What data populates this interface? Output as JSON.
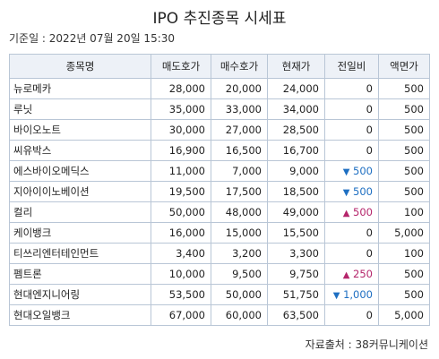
{
  "title": "IPO 추진종목 시세표",
  "base_date": "기준일 : 2022년 07월 20일 15:30",
  "columns": [
    "종목명",
    "매도호가",
    "매수호가",
    "현재가",
    "전일비",
    "액면가"
  ],
  "rows": [
    {
      "name": "뉴로메카",
      "ask": "28,000",
      "bid": "20,000",
      "price": "24,000",
      "dir": "",
      "change": "0",
      "par": "500"
    },
    {
      "name": "루닛",
      "ask": "35,000",
      "bid": "33,000",
      "price": "34,000",
      "dir": "",
      "change": "0",
      "par": "500"
    },
    {
      "name": "바이오노트",
      "ask": "30,000",
      "bid": "27,000",
      "price": "28,500",
      "dir": "",
      "change": "0",
      "par": "500"
    },
    {
      "name": "씨유박스",
      "ask": "16,900",
      "bid": "16,500",
      "price": "16,700",
      "dir": "",
      "change": "0",
      "par": "500"
    },
    {
      "name": "에스바이오메딕스",
      "ask": "11,000",
      "bid": "7,000",
      "price": "9,000",
      "dir": "▼",
      "change": "500",
      "par": "500"
    },
    {
      "name": "지아이이노베이션",
      "ask": "19,500",
      "bid": "17,500",
      "price": "18,500",
      "dir": "▼",
      "change": "500",
      "par": "500"
    },
    {
      "name": "컬리",
      "ask": "50,000",
      "bid": "48,000",
      "price": "49,000",
      "dir": "▲",
      "change": "500",
      "par": "100"
    },
    {
      "name": "케이뱅크",
      "ask": "16,000",
      "bid": "15,000",
      "price": "15,500",
      "dir": "",
      "change": "0",
      "par": "5,000"
    },
    {
      "name": "티쓰리엔터테인먼트",
      "ask": "3,400",
      "bid": "3,200",
      "price": "3,300",
      "dir": "",
      "change": "0",
      "par": "100"
    },
    {
      "name": "펨트론",
      "ask": "10,000",
      "bid": "9,500",
      "price": "9,750",
      "dir": "▲",
      "change": "250",
      "par": "500"
    },
    {
      "name": "현대엔지니어링",
      "ask": "53,500",
      "bid": "50,000",
      "price": "51,750",
      "dir": "▼",
      "change": "1,000",
      "par": "500"
    },
    {
      "name": "현대오일뱅크",
      "ask": "67,000",
      "bid": "60,000",
      "price": "63,500",
      "dir": "",
      "change": "0",
      "par": "5,000"
    }
  ],
  "source": "자료출처 : 38커뮤니케이션",
  "colors": {
    "up": "#b5256b",
    "down": "#1e6fc2",
    "header_bg": "#edf1f7",
    "border": "#b9c6d6"
  }
}
